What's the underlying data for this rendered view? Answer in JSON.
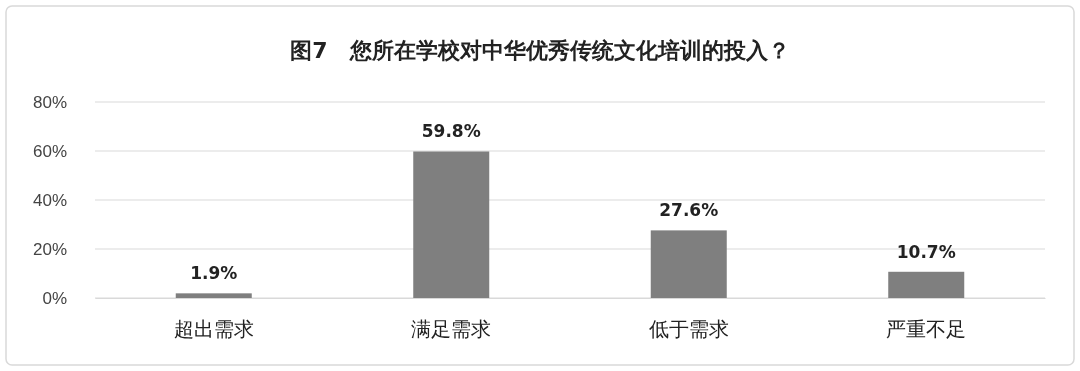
{
  "chart_data": {
    "type": "bar",
    "title": "图7　您所在学校对中华优秀传统文化培训的投入？",
    "categories": [
      "超出需求",
      "满足需求",
      "低于需求",
      "严重不足"
    ],
    "values": [
      1.9,
      59.8,
      27.6,
      10.7
    ],
    "value_labels": [
      "1.9%",
      "59.8%",
      "27.6%",
      "10.7%"
    ],
    "color": "#7f7f7f",
    "ylim": [
      0,
      80
    ],
    "yticks": [
      {
        "value": 0,
        "label": "0%"
      },
      {
        "value": 20,
        "label": "20%"
      },
      {
        "value": 40,
        "label": "40%"
      },
      {
        "value": 60,
        "label": "60%"
      },
      {
        "value": 80,
        "label": "80%"
      }
    ],
    "grid": "y"
  }
}
